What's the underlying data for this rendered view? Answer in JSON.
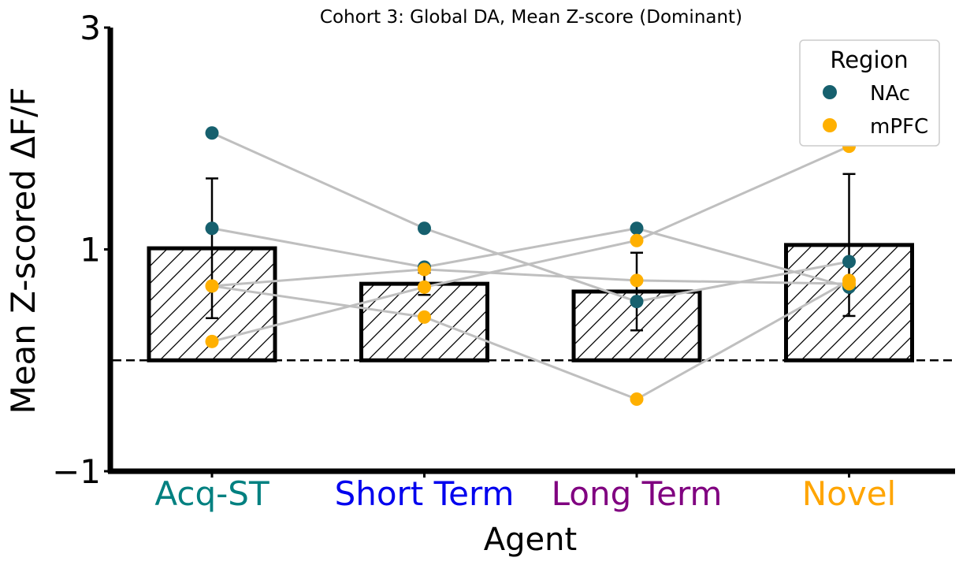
{
  "chart_data": {
    "type": "bar",
    "title": "Cohort 3: Global DA, Mean Z-score (Dominant)",
    "xlabel": "Agent",
    "ylabel": "Mean Z-scored ΔF/F",
    "ylim": [
      -1,
      3
    ],
    "yticks": [
      -1,
      1,
      3
    ],
    "ytick_labels": [
      "−1",
      "1",
      "3"
    ],
    "categories": [
      "Acq-ST",
      "Short Term",
      "Long Term",
      "Novel"
    ],
    "category_colors": [
      "#008080",
      "#0000ee",
      "#800080",
      "#ffa500"
    ],
    "values": [
      1.01,
      0.69,
      0.62,
      1.04
    ],
    "error": [
      0.63,
      0.1,
      0.35,
      0.64
    ],
    "bar_hatch": "diagonal",
    "reference_line": 0,
    "legend": {
      "title": "Region",
      "position": "top-right",
      "entries": [
        {
          "name": "NAc",
          "color": "#16606e"
        },
        {
          "name": "mPFC",
          "color": "#ffb000"
        }
      ]
    },
    "points": [
      {
        "region": "NAc",
        "values": [
          2.05,
          1.19,
          0.53,
          0.89
        ]
      },
      {
        "region": "NAc",
        "values": [
          1.19,
          0.84,
          1.19,
          0.66
        ]
      },
      {
        "region": "mPFC",
        "values": [
          0.67,
          0.82,
          0.72,
          0.69
        ]
      },
      {
        "region": "mPFC",
        "values": [
          0.17,
          0.66,
          1.08,
          1.93
        ]
      },
      {
        "region": "mPFC",
        "values": [
          0.67,
          0.39,
          -0.35,
          0.72
        ]
      }
    ],
    "connector_color": "#bfbfbf"
  }
}
